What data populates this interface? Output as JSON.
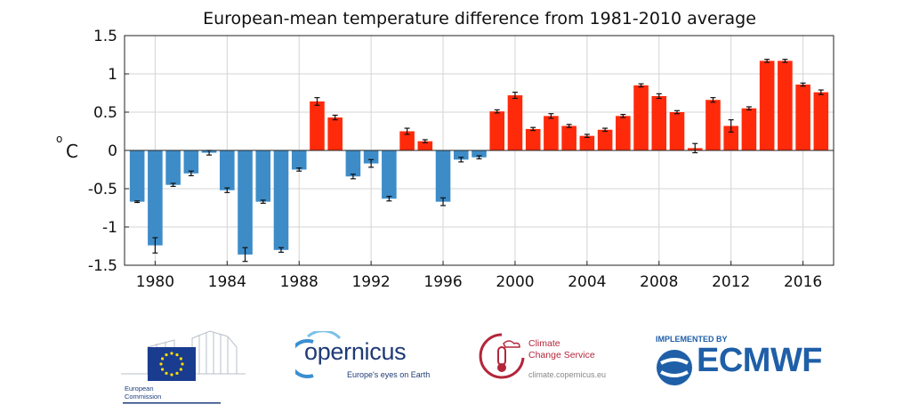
{
  "chart_data": {
    "type": "bar",
    "title": "European-mean temperature difference from 1981-2010 average",
    "ylabel": "C",
    "ylabel_superscript": "o",
    "xlabel": "",
    "ylim": [
      -1.5,
      1.5
    ],
    "yticks": [
      -1.5,
      -1,
      -0.5,
      0,
      0.5,
      1,
      1.5
    ],
    "ytick_labels": [
      "-1.5",
      "-1",
      "-0.5",
      "0",
      "0.5",
      "1",
      "1.5"
    ],
    "xlim": [
      1978.3,
      2017.7
    ],
    "xticks": [
      1980,
      1984,
      1988,
      1992,
      1996,
      2000,
      2004,
      2008,
      2012,
      2016
    ],
    "xtick_labels": [
      "1980",
      "1984",
      "1988",
      "1992",
      "1996",
      "2000",
      "2004",
      "2008",
      "2012",
      "2016"
    ],
    "grid": true,
    "colors": {
      "positive": "#ff2a0a",
      "negative": "#3d8cc8"
    },
    "years": [
      1979,
      1980,
      1981,
      1982,
      1983,
      1984,
      1985,
      1986,
      1987,
      1988,
      1989,
      1990,
      1991,
      1992,
      1993,
      1994,
      1995,
      1996,
      1997,
      1998,
      1999,
      2000,
      2001,
      2002,
      2003,
      2004,
      2005,
      2006,
      2007,
      2008,
      2009,
      2010,
      2011,
      2012,
      2013,
      2014,
      2015,
      2016,
      2017
    ],
    "values": [
      -0.67,
      -1.24,
      -0.45,
      -0.3,
      -0.03,
      -0.52,
      -1.36,
      -0.67,
      -1.3,
      -0.25,
      0.64,
      0.43,
      -0.34,
      -0.17,
      -0.63,
      0.25,
      0.12,
      -0.67,
      -0.12,
      -0.09,
      0.51,
      0.72,
      0.28,
      0.45,
      0.32,
      0.19,
      0.27,
      0.45,
      0.85,
      0.71,
      0.5,
      0.03,
      0.66,
      0.32,
      0.55,
      1.17,
      1.17,
      0.86,
      0.76
    ],
    "errors": [
      0.01,
      0.1,
      0.02,
      0.03,
      0.03,
      0.03,
      0.09,
      0.02,
      0.03,
      0.02,
      0.05,
      0.03,
      0.03,
      0.05,
      0.03,
      0.04,
      0.02,
      0.05,
      0.03,
      0.02,
      0.02,
      0.04,
      0.02,
      0.03,
      0.02,
      0.02,
      0.02,
      0.02,
      0.02,
      0.03,
      0.02,
      0.06,
      0.03,
      0.08,
      0.02,
      0.02,
      0.02,
      0.02,
      0.03
    ]
  },
  "logos": {
    "european_commission": {
      "line1": "European",
      "line2": "Commission"
    },
    "copernicus": {
      "name": "opernicus",
      "tagline": "Europe's eyes on Earth"
    },
    "c3s": {
      "line1": "Climate",
      "line2": "Change Service",
      "url": "climate.copernicus.eu"
    },
    "ecmwf": {
      "implemented_by": "IMPLEMENTED BY",
      "name": "ECMWF"
    }
  }
}
